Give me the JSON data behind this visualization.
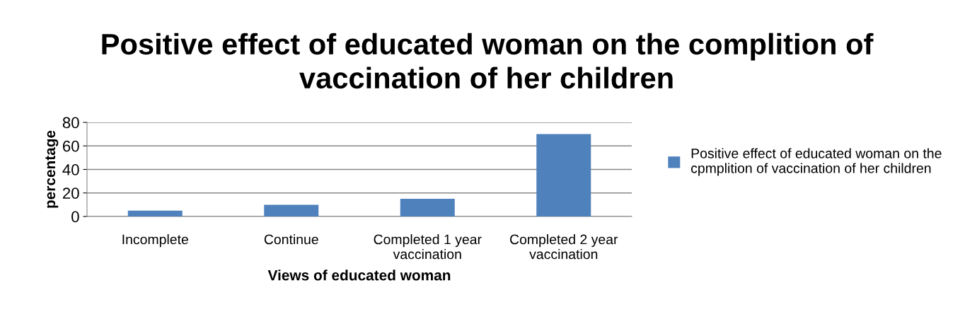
{
  "chart_data": {
    "type": "bar",
    "title": "Positive effect of educated woman on the complition of\nvaccination of her children",
    "xlabel": "Views of educated woman",
    "ylabel": "percentage",
    "categories": [
      "Incomplete",
      "Continue",
      "Completed 1 year\nvaccination",
      "Completed 2 year\nvaccination"
    ],
    "series": [
      {
        "name": "Positive effect of educated woman on the\ncpmplition of vaccination of her children",
        "color": "#4f81bd",
        "values": [
          5,
          10,
          15,
          70
        ]
      }
    ],
    "ylim": [
      0,
      80
    ],
    "yticks": [
      0,
      20,
      40,
      60,
      80
    ],
    "grid": "y",
    "legend": "right"
  }
}
